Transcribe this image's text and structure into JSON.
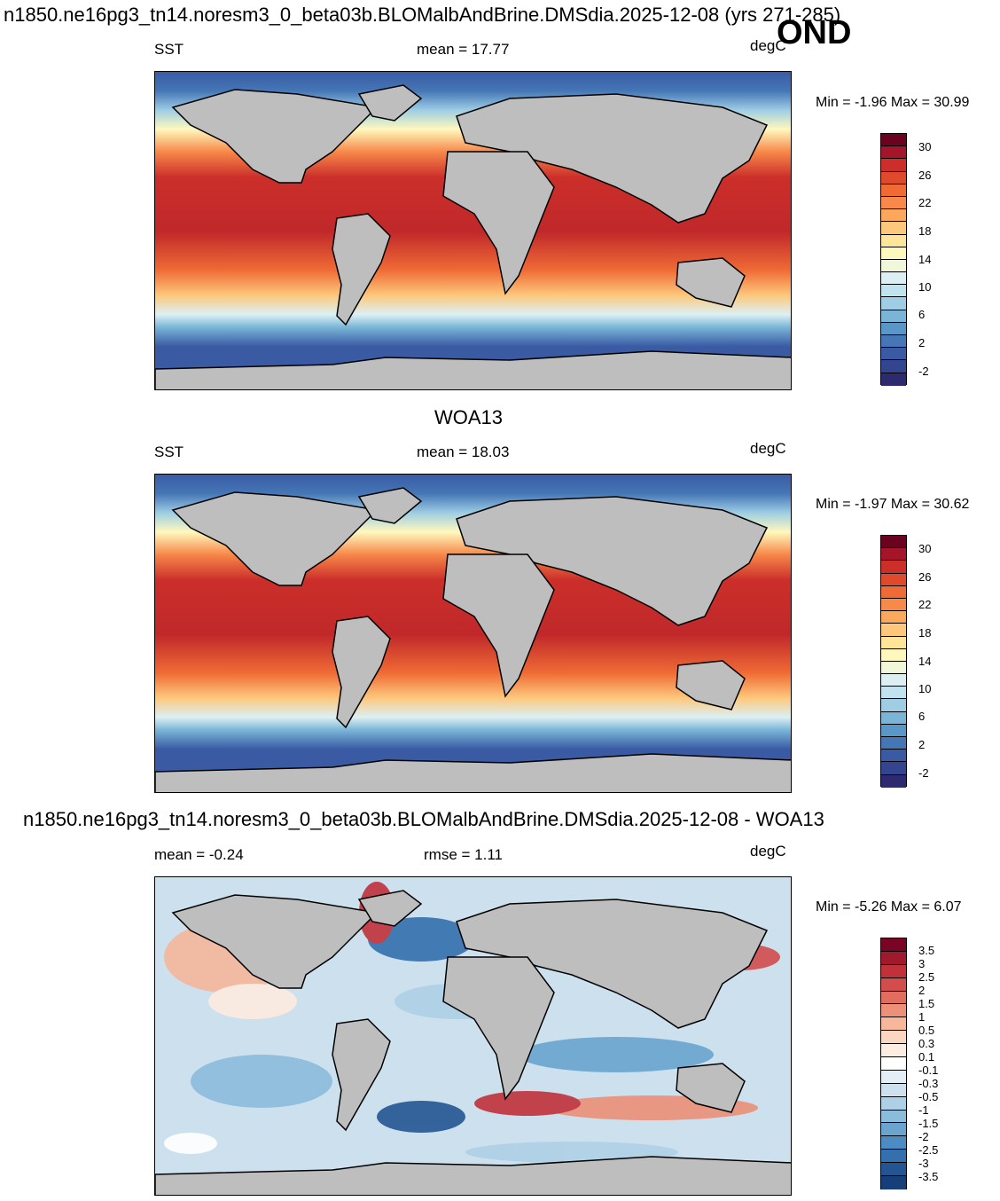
{
  "page_title": "n1850.ne16pg3_tn14.noresm3_0_beta03b.BLOMalbAndBrine.DMSdia.2025-12-08 (yrs 271-285)",
  "season": "OND",
  "panels": [
    {
      "heading": "",
      "variable": "SST",
      "mean_text": "mean =  17.77",
      "units": "degC",
      "minmax_text": "Min =  -1.96 Max =  30.99",
      "map": "SST model field, world map"
    },
    {
      "heading": "WOA13",
      "variable": "SST",
      "mean_text": "mean =  18.03",
      "units": "degC",
      "minmax_text": "Min =  -1.97 Max =  30.62",
      "map": "SST observed field, world map"
    },
    {
      "heading": "n1850.ne16pg3_tn14.noresm3_0_beta03b.BLOMalbAndBrine.DMSdia.2025-12-08 - WOA13",
      "variable": "mean =  -0.24",
      "mean_text": "rmse =   1.11",
      "units": "degC",
      "minmax_text": "Min =  -5.26 Max =   6.07",
      "map": "SST difference field, world map"
    }
  ],
  "colorbar_sst": {
    "labels": [
      "30",
      "26",
      "22",
      "18",
      "14",
      "10",
      "6",
      "2",
      "-2"
    ],
    "colors": [
      "#6a0320",
      "#a5152a",
      "#cc2f2a",
      "#e04a2c",
      "#ef6a35",
      "#f7894a",
      "#fba85d",
      "#fdc87c",
      "#fee59a",
      "#fff8bd",
      "#f1f7d9",
      "#dcf0f4",
      "#c0e3ef",
      "#9ecde4",
      "#7ab5d7",
      "#5a97c7",
      "#4577b6",
      "#3a5ba4",
      "#34458f",
      "#2e2a70"
    ]
  },
  "colorbar_diff": {
    "labels": [
      "3.5",
      "3",
      "2.5",
      "2",
      "1.5",
      "1",
      "0.5",
      "0.3",
      "0.1",
      "-0.1",
      "-0.3",
      "-0.5",
      "-1",
      "-1.5",
      "-2",
      "-2.5",
      "-3",
      "-3.5"
    ],
    "colors": [
      "#7a0426",
      "#a01a2e",
      "#c0313a",
      "#d24d4b",
      "#e06d5e",
      "#ec9078",
      "#f6b79b",
      "#fbd7c1",
      "#fdece0",
      "#ffffff",
      "#e4eef6",
      "#cde0ee",
      "#aed0e6",
      "#8bbcdc",
      "#6aa5d0",
      "#4c8cc2",
      "#3470ae",
      "#245593",
      "#163e78"
    ]
  }
}
